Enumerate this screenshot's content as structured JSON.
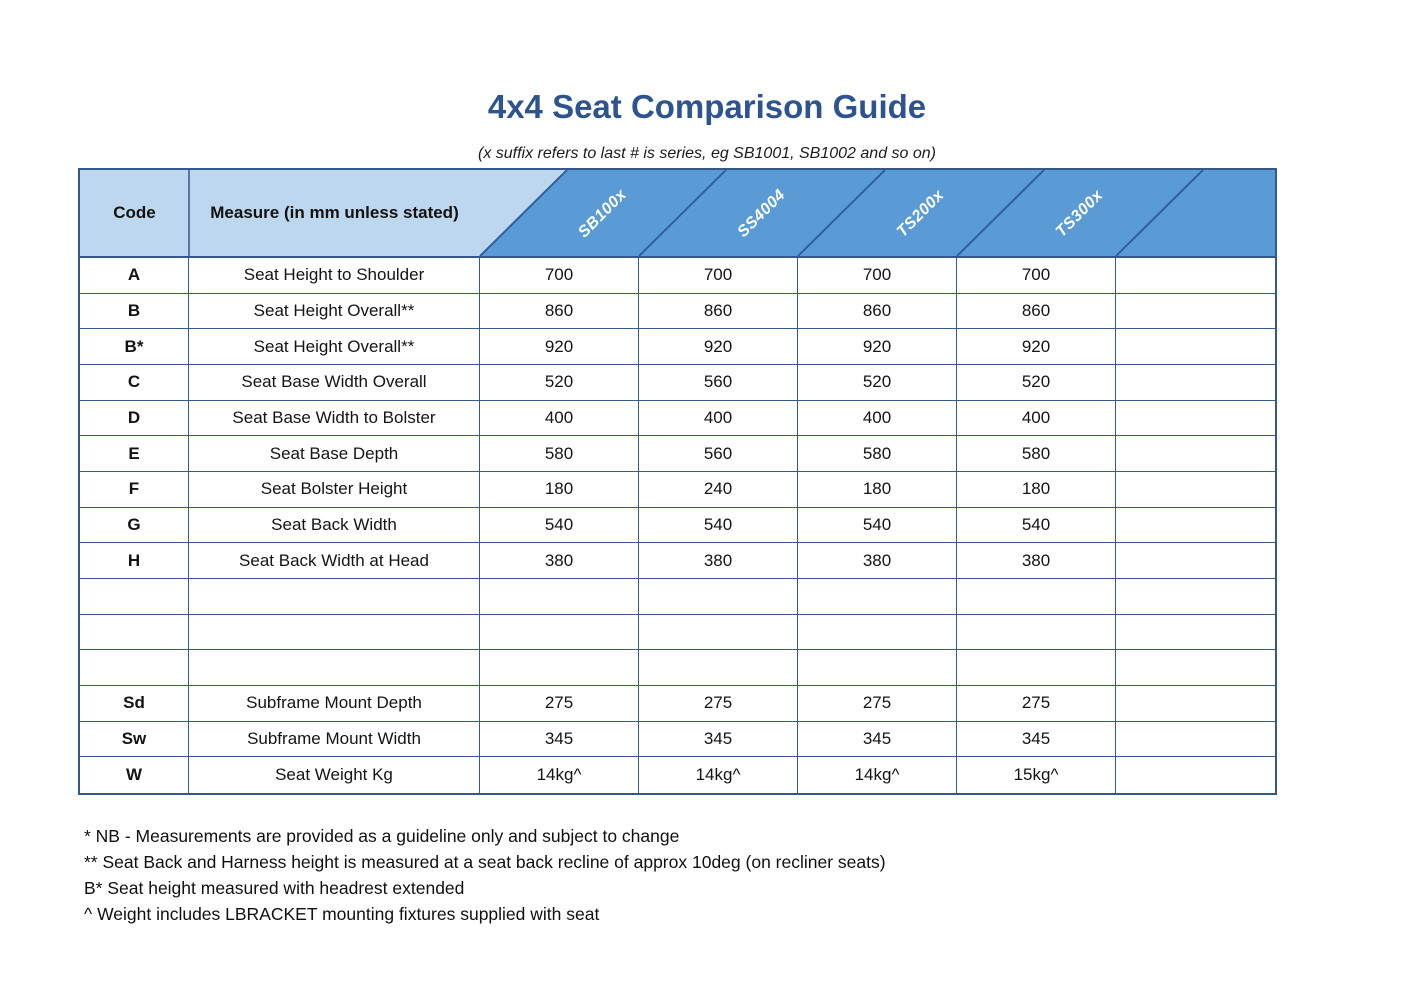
{
  "title": "4x4 Seat Comparison Guide",
  "subtitle": "(x suffix refers to last # is series, eg SB1001, SB1002 and so on)",
  "table": {
    "code_header": "Code",
    "measure_header": "Measure (in mm unless stated)",
    "product_columns": [
      "SB100x",
      "SS4004",
      "TS200x",
      "TS300x",
      ""
    ],
    "rows": [
      {
        "code": "A",
        "measure": "Seat Height to Shoulder",
        "values": [
          "700",
          "700",
          "700",
          "700",
          ""
        ]
      },
      {
        "code": "B",
        "measure": "Seat Height Overall**",
        "values": [
          "860",
          "860",
          "860",
          "860",
          ""
        ]
      },
      {
        "code": "B*",
        "measure": "Seat Height Overall**",
        "values": [
          "920",
          "920",
          "920",
          "920",
          ""
        ]
      },
      {
        "code": "C",
        "measure": "Seat Base Width Overall",
        "values": [
          "520",
          "560",
          "520",
          "520",
          ""
        ]
      },
      {
        "code": "D",
        "measure": "Seat Base Width to Bolster",
        "values": [
          "400",
          "400",
          "400",
          "400",
          ""
        ]
      },
      {
        "code": "E",
        "measure": "Seat Base Depth",
        "values": [
          "580",
          "560",
          "580",
          "580",
          ""
        ]
      },
      {
        "code": "F",
        "measure": "Seat Bolster Height",
        "values": [
          "180",
          "240",
          "180",
          "180",
          ""
        ]
      },
      {
        "code": "G",
        "measure": "Seat Back Width",
        "values": [
          "540",
          "540",
          "540",
          "540",
          ""
        ]
      },
      {
        "code": "H",
        "measure": "Seat Back Width at Head",
        "values": [
          "380",
          "380",
          "380",
          "380",
          ""
        ]
      },
      {
        "code": "",
        "measure": "",
        "values": [
          "",
          "",
          "",
          "",
          ""
        ]
      },
      {
        "code": "",
        "measure": "",
        "values": [
          "",
          "",
          "",
          "",
          ""
        ]
      },
      {
        "code": "",
        "measure": "",
        "values": [
          "",
          "",
          "",
          "",
          ""
        ]
      },
      {
        "code": "Sd",
        "measure": "Subframe Mount Depth",
        "values": [
          "275",
          "275",
          "275",
          "275",
          ""
        ]
      },
      {
        "code": "Sw",
        "measure": "Subframe Mount Width",
        "values": [
          "345",
          "345",
          "345",
          "345",
          ""
        ]
      },
      {
        "code": "W",
        "measure": "Seat Weight Kg",
        "values": [
          "14kg^",
          "14kg^",
          "14kg^",
          "15kg^",
          ""
        ]
      }
    ]
  },
  "footnotes": [
    "* NB - Measurements are provided as a guideline only and subject to change",
    "** Seat Back and Harness height is measured at a seat back recline of approx 10deg (on recliner seats)",
    "B* Seat height measured with headrest extended",
    "^ Weight includes LBRACKET mounting fixtures supplied with seat"
  ],
  "colors": {
    "title_text": "#2e5490",
    "header_light_blue": "#bdd7ee",
    "header_blue": "#5b9bd5",
    "grid_border": "#37598c",
    "diagonal_line": "#2e5e9e",
    "header_label_text": "#ffffff"
  }
}
